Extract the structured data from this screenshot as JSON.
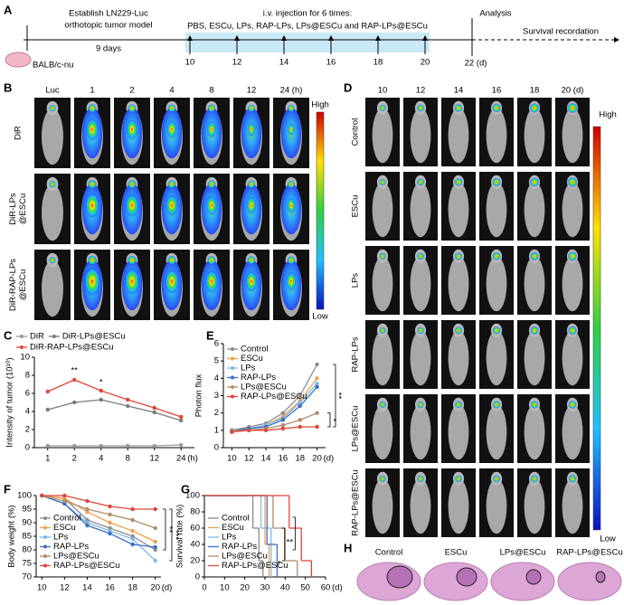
{
  "panel_labels": [
    "A",
    "B",
    "C",
    "D",
    "E",
    "F",
    "G",
    "H"
  ],
  "timeline": {
    "model_line1": "Establish LN229-Luc",
    "model_line2": "orthotopic tumor model",
    "duration": "9 days",
    "injection_title": "i.v. injection for 6 times:",
    "groups": "PBS, ESCu, LPs, RAP-LPs, LPs@ESCu and RAP-LPs@ESCu",
    "days": [
      10,
      12,
      14,
      16,
      18,
      20
    ],
    "analysis": "Analysis",
    "analysis_day": "22 (d)",
    "survival": "Survival recordation",
    "mouse": "BALB/c-nu"
  },
  "panel_b": {
    "columns": [
      "Luc",
      "1",
      "2",
      "4",
      "8",
      "12",
      "24 (h)"
    ],
    "rows": [
      [
        "DiR"
      ],
      [
        "DiR-LPs",
        "@ESCu"
      ],
      [
        "DiR-RAP-LPs",
        "@ESCu"
      ]
    ],
    "scale_high": "High",
    "scale_low": "Low"
  },
  "panel_d": {
    "columns": [
      "10",
      "12",
      "14",
      "16",
      "18",
      "20 (d)"
    ],
    "rows": [
      "Control",
      "ESCu",
      "LPs",
      "RAP-LPs",
      "LPs@ESCu",
      "RAP-LPs@ESCu"
    ],
    "scale_high": "High",
    "scale_low": "Low"
  },
  "panel_h": {
    "labels": [
      "Control",
      "ESCu",
      "LPs@ESCu",
      "RAP-LPs@ESCu"
    ]
  },
  "chart_data": [
    {
      "type": "line",
      "y_label": "Intensity of tumor (10¹⁰)",
      "categories": [
        "1",
        "2",
        "4",
        "8",
        "12",
        "24"
      ],
      "x_unit": "(h)",
      "ylim": [
        0,
        10
      ],
      "yticks": [
        0,
        2,
        4,
        6,
        8,
        10
      ],
      "legend": "top",
      "series": [
        {
          "name": "DiR",
          "color": "#9a9a9a",
          "values": [
            0.2,
            0.2,
            0.2,
            0.2,
            0.2,
            0.3
          ]
        },
        {
          "name": "DiR-LPs@ESCu",
          "color": "#7a7a7a",
          "values": [
            4.2,
            5.0,
            5.3,
            4.6,
            3.9,
            3.0
          ]
        },
        {
          "name": "DiR-RAP-LPs@ESCu",
          "color": "#e0453a",
          "values": [
            6.2,
            7.5,
            6.3,
            5.3,
            4.4,
            3.4
          ]
        }
      ],
      "annotations": [
        "**",
        "*"
      ]
    },
    {
      "type": "line",
      "y_label": "Photon flux",
      "x": [
        10,
        12,
        14,
        16,
        18,
        20
      ],
      "x_unit": "(d)",
      "xlim": [
        9,
        21
      ],
      "xticks": [
        10,
        12,
        14,
        16,
        18,
        20
      ],
      "ylim": [
        0,
        6
      ],
      "yticks": [
        0,
        1,
        2,
        3,
        4,
        5,
        6
      ],
      "legend": "upper-left",
      "series": [
        {
          "name": "Control",
          "color": "#8c8c8c",
          "values": [
            1.0,
            1.2,
            1.4,
            2.0,
            3.0,
            4.8
          ]
        },
        {
          "name": "ESCu",
          "color": "#f0a050",
          "values": [
            1.0,
            1.1,
            1.3,
            1.8,
            2.7,
            4.0
          ]
        },
        {
          "name": "LPs",
          "color": "#7fb8e8",
          "values": [
            1.0,
            1.1,
            1.3,
            1.7,
            2.6,
            3.7
          ]
        },
        {
          "name": "RAP-LPs",
          "color": "#3a6fc0",
          "values": [
            1.0,
            1.1,
            1.2,
            1.6,
            2.4,
            3.5
          ]
        },
        {
          "name": "LPs@ESCu",
          "color": "#b08a6a",
          "values": [
            1.0,
            1.0,
            1.1,
            1.3,
            1.6,
            2.0
          ]
        },
        {
          "name": "RAP-LPs@ESCu",
          "color": "#e0453a",
          "values": [
            0.9,
            1.0,
            1.0,
            1.1,
            1.2,
            1.2
          ]
        }
      ],
      "annotations": [
        "*",
        "**"
      ]
    },
    {
      "type": "line",
      "y_label": "Body weight (%)",
      "x": [
        10,
        12,
        14,
        16,
        18,
        20
      ],
      "x_unit": "(d)",
      "xlim": [
        9.5,
        20.5
      ],
      "xticks": [
        10,
        12,
        14,
        16,
        18,
        20
      ],
      "ylim": [
        70,
        100
      ],
      "yticks": [
        70,
        75,
        80,
        85,
        90,
        95,
        100
      ],
      "legend": "lower-left",
      "series": [
        {
          "name": "Control",
          "color": "#8c8c8c",
          "values": [
            100,
            99,
            91,
            88,
            85,
            80
          ]
        },
        {
          "name": "ESCu",
          "color": "#f0a050",
          "values": [
            100,
            99,
            94,
            90,
            87,
            83
          ]
        },
        {
          "name": "LPs",
          "color": "#7fb8e8",
          "values": [
            100,
            97,
            90,
            87,
            84,
            76
          ]
        },
        {
          "name": "RAP-LPs",
          "color": "#3a6fc0",
          "values": [
            100,
            97,
            89,
            86,
            82,
            81
          ]
        },
        {
          "name": "LPs@ESCu",
          "color": "#b08a6a",
          "values": [
            100,
            98,
            95,
            93,
            91,
            88
          ]
        },
        {
          "name": "RAP-LPs@ESCu",
          "color": "#e0453a",
          "values": [
            100,
            100,
            98,
            96,
            95,
            95
          ]
        }
      ],
      "annotations": [
        "**",
        "***"
      ]
    },
    {
      "type": "step",
      "y_label": "Survival rate (%)",
      "x_unit": "(d)",
      "xlim": [
        0,
        60
      ],
      "xticks": [
        0,
        10,
        20,
        30,
        40,
        50,
        60
      ],
      "ylim": [
        0,
        100
      ],
      "yticks": [
        0,
        20,
        40,
        60,
        80,
        100
      ],
      "legend": "lower-left",
      "series": [
        {
          "name": "Control",
          "color": "#8c8c8c",
          "x": [
            0,
            24,
            27,
            29
          ],
          "values": [
            100,
            60,
            20,
            0
          ]
        },
        {
          "name": "ESCu",
          "color": "#f0a050",
          "x": [
            0,
            30,
            32
          ],
          "values": [
            100,
            40,
            0
          ]
        },
        {
          "name": "LPs",
          "color": "#7fb8e8",
          "x": [
            0,
            28,
            33
          ],
          "values": [
            100,
            60,
            0
          ]
        },
        {
          "name": "RAP-LPs",
          "color": "#3a6fc0",
          "x": [
            0,
            31,
            36
          ],
          "values": [
            100,
            40,
            0
          ]
        },
        {
          "name": "LPs@ESCu",
          "color": "#b08a6a",
          "x": [
            0,
            34,
            40,
            46
          ],
          "values": [
            100,
            60,
            20,
            0
          ]
        },
        {
          "name": "RAP-LPs@ESCu",
          "color": "#e0453a",
          "x": [
            0,
            42,
            48,
            53
          ],
          "values": [
            100,
            60,
            20,
            0
          ]
        }
      ],
      "annotations": [
        "*",
        "**"
      ]
    }
  ]
}
